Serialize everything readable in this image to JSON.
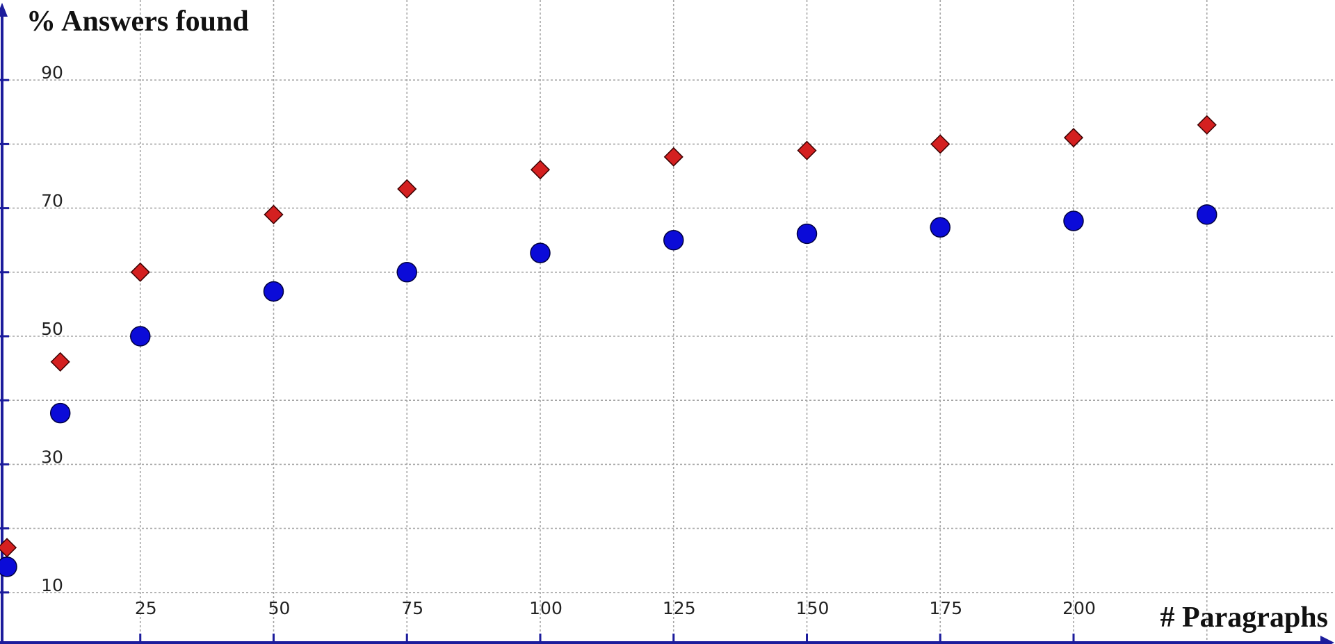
{
  "chart_data": {
    "type": "scatter",
    "ylabel": "% Answers found",
    "xlabel": "# Paragraphs",
    "x_ticks": [
      25,
      50,
      75,
      100,
      125,
      150,
      175,
      200
    ],
    "x_tick_labels": [
      "25",
      "50",
      "75",
      "100",
      "125",
      "150",
      "175",
      "200"
    ],
    "y_ticks": [
      10,
      30,
      50,
      70,
      90
    ],
    "y_tick_labels": [
      "10",
      "30",
      "50",
      "70",
      "90"
    ],
    "x_grid": [
      25,
      50,
      75,
      100,
      125,
      150,
      175,
      200,
      225
    ],
    "y_grid": [
      10,
      20,
      30,
      40,
      50,
      60,
      70,
      80,
      90
    ],
    "xlim": [
      0,
      250
    ],
    "ylim": [
      8,
      101
    ],
    "grid": true,
    "series": [
      {
        "marker": "diamond",
        "color": "#d42020",
        "x": [
          0,
          10,
          25,
          50,
          75,
          100,
          125,
          150,
          175,
          200,
          225
        ],
        "y": [
          17,
          46,
          60,
          69,
          73,
          76,
          78,
          79,
          80,
          81,
          83
        ]
      },
      {
        "marker": "circle",
        "color": "#0b0bd8",
        "x": [
          0,
          10,
          25,
          50,
          75,
          100,
          125,
          150,
          175,
          200,
          225
        ],
        "y": [
          14,
          38,
          50,
          57,
          60,
          63,
          65,
          66,
          67,
          68,
          69
        ]
      }
    ]
  }
}
